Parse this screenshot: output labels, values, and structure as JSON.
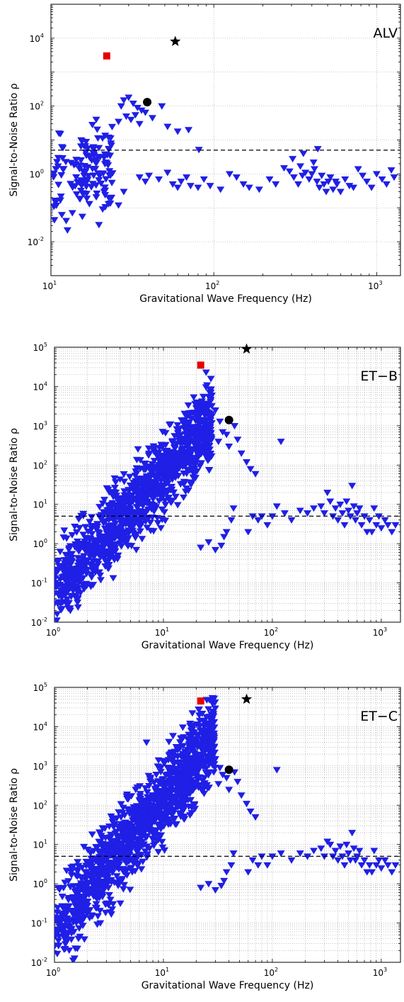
{
  "figure": {
    "panels": [
      "ALV",
      "ET-B",
      "ET-C"
    ]
  },
  "colors": {
    "triangle": "#1f1fe6",
    "square": "#e60000",
    "circle": "#000000",
    "star": "#000000",
    "threshold": "#000000",
    "grid": "#9a9a9a"
  },
  "chart_data": [
    {
      "type": "scatter",
      "label": "ALV",
      "xlabel": "Gravitational Wave Frequency (Hz)",
      "ylabel": "Signal-to-Noise Ratio ρ",
      "xscale": "log",
      "yscale": "log",
      "xlim": [
        10,
        1400
      ],
      "ylim": [
        0.001,
        100000
      ],
      "xticks": [
        {
          "base": "10",
          "exp": "1",
          "v": 10
        },
        {
          "base": "10",
          "exp": "2",
          "v": 100
        },
        {
          "base": "10",
          "exp": "3",
          "v": 1000
        }
      ],
      "yticks": [
        {
          "base": "10",
          "exp": "-2",
          "v": 0.01
        },
        {
          "base": "10",
          "exp": "0",
          "v": 1
        },
        {
          "base": "10",
          "exp": "2",
          "v": 100
        },
        {
          "base": "10",
          "exp": "4",
          "v": 10000
        }
      ],
      "grid": "major",
      "threshold": 5,
      "square": {
        "x": 22,
        "y": 3000
      },
      "star": {
        "x": 58,
        "y": 8000
      },
      "circle": {
        "x": 39,
        "y": 130
      },
      "cluster": {
        "n": 140,
        "fmin": 10.2,
        "fmax": 24,
        "base": 0.4,
        "slope": 2.2,
        "spread": 1.0
      },
      "triangles": [
        [
          30,
          180
        ],
        [
          28,
          150
        ],
        [
          32,
          120
        ],
        [
          27,
          100
        ],
        [
          34,
          90
        ],
        [
          36,
          75
        ],
        [
          38,
          65
        ],
        [
          33,
          55
        ],
        [
          29,
          50
        ],
        [
          31,
          40
        ],
        [
          26,
          35
        ],
        [
          35,
          30
        ],
        [
          42,
          45
        ],
        [
          48,
          100
        ],
        [
          52,
          25
        ],
        [
          60,
          18
        ],
        [
          70,
          20
        ],
        [
          81,
          5.2
        ],
        [
          26,
          0.12
        ],
        [
          28,
          0.3
        ],
        [
          35,
          0.8
        ],
        [
          38,
          0.6
        ],
        [
          40,
          0.9
        ],
        [
          46,
          0.7
        ],
        [
          52,
          1.1
        ],
        [
          56,
          0.5
        ],
        [
          60,
          0.4
        ],
        [
          63,
          0.6
        ],
        [
          68,
          0.8
        ],
        [
          72,
          0.45
        ],
        [
          80,
          0.4
        ],
        [
          87,
          0.7
        ],
        [
          95,
          0.45
        ],
        [
          110,
          0.35
        ],
        [
          125,
          1.0
        ],
        [
          138,
          0.8
        ],
        [
          152,
          0.5
        ],
        [
          165,
          0.4
        ],
        [
          190,
          0.35
        ],
        [
          220,
          0.7
        ],
        [
          240,
          0.5
        ],
        [
          270,
          1.5
        ],
        [
          292,
          1.2
        ],
        [
          310,
          0.8
        ],
        [
          330,
          0.5
        ],
        [
          350,
          0.9
        ],
        [
          365,
          1.1
        ],
        [
          385,
          0.7
        ],
        [
          400,
          1.0
        ],
        [
          415,
          1.4
        ],
        [
          430,
          0.6
        ],
        [
          445,
          0.4
        ],
        [
          460,
          0.9
        ],
        [
          475,
          0.5
        ],
        [
          490,
          0.3
        ],
        [
          505,
          0.6
        ],
        [
          520,
          0.8
        ],
        [
          540,
          0.35
        ],
        [
          570,
          0.5
        ],
        [
          600,
          0.3
        ],
        [
          640,
          0.7
        ],
        [
          680,
          0.45
        ],
        [
          720,
          0.4
        ],
        [
          770,
          1.4
        ],
        [
          820,
          0.9
        ],
        [
          870,
          0.6
        ],
        [
          930,
          0.4
        ],
        [
          1000,
          1.0
        ],
        [
          1080,
          0.7
        ],
        [
          1150,
          0.5
        ],
        [
          1230,
          1.3
        ],
        [
          1280,
          0.8
        ],
        [
          305,
          2.8
        ],
        [
          355,
          4.0
        ],
        [
          410,
          2.2
        ],
        [
          435,
          5.5
        ],
        [
          340,
          1.7
        ],
        [
          560,
          0.6
        ]
      ]
    },
    {
      "type": "scatter",
      "label": "ET−B",
      "xlabel": "Gravitational Wave Frequency (Hz)",
      "ylabel": "Signal-to-Noise Ratio ρ",
      "xscale": "log",
      "yscale": "log",
      "xlim": [
        1,
        1500
      ],
      "ylim": [
        0.01,
        100000
      ],
      "xticks": [
        {
          "base": "10",
          "exp": "0",
          "v": 1
        },
        {
          "base": "10",
          "exp": "1",
          "v": 10
        },
        {
          "base": "10",
          "exp": "2",
          "v": 100
        },
        {
          "base": "10",
          "exp": "3",
          "v": 1000
        }
      ],
      "yticks": [
        {
          "base": "10",
          "exp": "-2",
          "v": 0.01
        },
        {
          "base": "10",
          "exp": "-1",
          "v": 0.1
        },
        {
          "base": "10",
          "exp": "0",
          "v": 1
        },
        {
          "base": "10",
          "exp": "1",
          "v": 10
        },
        {
          "base": "10",
          "exp": "2",
          "v": 100
        },
        {
          "base": "10",
          "exp": "3",
          "v": 1000
        },
        {
          "base": "10",
          "exp": "4",
          "v": 10000
        },
        {
          "base": "10",
          "exp": "5",
          "v": 100000
        }
      ],
      "grid": "full",
      "threshold": 5,
      "square": {
        "x": 22,
        "y": 35000
      },
      "star": {
        "x": 58,
        "y": 90000
      },
      "circle": {
        "x": 40,
        "y": 1400
      },
      "cluster": {
        "n": 1250,
        "fmin": 1.0,
        "fmax": 28,
        "base": 0.06,
        "slope": 3.0,
        "spread": 0.7
      },
      "triangles": [
        [
          30,
          2500
        ],
        [
          28,
          1800
        ],
        [
          33,
          1300
        ],
        [
          26,
          900
        ],
        [
          35,
          700
        ],
        [
          38,
          600
        ],
        [
          32,
          400
        ],
        [
          24,
          350
        ],
        [
          40,
          300
        ],
        [
          45,
          1000
        ],
        [
          48,
          450
        ],
        [
          52,
          200
        ],
        [
          58,
          120
        ],
        [
          63,
          80
        ],
        [
          70,
          60
        ],
        [
          120,
          400
        ],
        [
          100,
          5
        ],
        [
          150,
          4
        ],
        [
          180,
          7
        ],
        [
          210,
          6
        ],
        [
          240,
          8
        ],
        [
          280,
          9
        ],
        [
          300,
          6
        ],
        [
          320,
          20
        ],
        [
          340,
          12
        ],
        [
          360,
          5
        ],
        [
          380,
          8
        ],
        [
          400,
          4
        ],
        [
          420,
          10
        ],
        [
          440,
          6
        ],
        [
          460,
          3
        ],
        [
          480,
          12
        ],
        [
          500,
          7
        ],
        [
          520,
          5
        ],
        [
          540,
          30
        ],
        [
          560,
          9
        ],
        [
          580,
          4
        ],
        [
          600,
          6
        ],
        [
          630,
          8
        ],
        [
          660,
          3
        ],
        [
          700,
          5
        ],
        [
          740,
          2
        ],
        [
          780,
          4
        ],
        [
          820,
          2
        ],
        [
          860,
          8
        ],
        [
          900,
          3
        ],
        [
          950,
          5
        ],
        [
          1000,
          2.5
        ],
        [
          1080,
          4
        ],
        [
          1150,
          3
        ],
        [
          1250,
          2
        ],
        [
          1350,
          3
        ],
        [
          80,
          5
        ],
        [
          90,
          3
        ],
        [
          110,
          9
        ],
        [
          130,
          6
        ],
        [
          44,
          8
        ],
        [
          42,
          4
        ],
        [
          38,
          2
        ],
        [
          36,
          1.5
        ],
        [
          34,
          0.9
        ],
        [
          30,
          0.7
        ],
        [
          26,
          1.1
        ],
        [
          22,
          0.8
        ],
        [
          60,
          2
        ],
        [
          66,
          5
        ],
        [
          74,
          4
        ]
      ]
    },
    {
      "type": "scatter",
      "label": "ET−C",
      "xlabel": "Gravitational Wave Frequency (Hz)",
      "ylabel": "Signal-to-Noise Ratio ρ",
      "xscale": "log",
      "yscale": "log",
      "xlim": [
        1,
        1500
      ],
      "ylim": [
        0.01,
        100000
      ],
      "xticks": [
        {
          "base": "10",
          "exp": "0",
          "v": 1
        },
        {
          "base": "10",
          "exp": "1",
          "v": 10
        },
        {
          "base": "10",
          "exp": "2",
          "v": 100
        },
        {
          "base": "10",
          "exp": "3",
          "v": 1000
        }
      ],
      "yticks": [
        {
          "base": "10",
          "exp": "-2",
          "v": 0.01
        },
        {
          "base": "10",
          "exp": "-1",
          "v": 0.1
        },
        {
          "base": "10",
          "exp": "0",
          "v": 1
        },
        {
          "base": "10",
          "exp": "1",
          "v": 10
        },
        {
          "base": "10",
          "exp": "2",
          "v": 100
        },
        {
          "base": "10",
          "exp": "3",
          "v": 1000
        },
        {
          "base": "10",
          "exp": "4",
          "v": 10000
        },
        {
          "base": "10",
          "exp": "5",
          "v": 100000
        }
      ],
      "grid": "full",
      "threshold": 5,
      "square": {
        "x": 22,
        "y": 45000
      },
      "star": {
        "x": 58,
        "y": 50000
      },
      "circle": {
        "x": 40,
        "y": 800
      },
      "cluster": {
        "n": 1350,
        "fmin": 1.0,
        "fmax": 30,
        "base": 0.06,
        "slope": 3.4,
        "spread": 0.75
      },
      "triangles": [
        [
          7,
          4000
        ],
        [
          30,
          1500
        ],
        [
          28,
          1100
        ],
        [
          33,
          900
        ],
        [
          26,
          700
        ],
        [
          35,
          600
        ],
        [
          38,
          500
        ],
        [
          32,
          350
        ],
        [
          24,
          300
        ],
        [
          40,
          250
        ],
        [
          45,
          700
        ],
        [
          48,
          400
        ],
        [
          52,
          180
        ],
        [
          58,
          110
        ],
        [
          63,
          70
        ],
        [
          70,
          50
        ],
        [
          110,
          800
        ],
        [
          100,
          5
        ],
        [
          150,
          4
        ],
        [
          180,
          6
        ],
        [
          210,
          5
        ],
        [
          240,
          7
        ],
        [
          280,
          8
        ],
        [
          300,
          5
        ],
        [
          320,
          12
        ],
        [
          340,
          10
        ],
        [
          360,
          5
        ],
        [
          380,
          7
        ],
        [
          400,
          4
        ],
        [
          420,
          9
        ],
        [
          440,
          5
        ],
        [
          460,
          3
        ],
        [
          480,
          10
        ],
        [
          500,
          6
        ],
        [
          520,
          4
        ],
        [
          540,
          20
        ],
        [
          560,
          8
        ],
        [
          580,
          4
        ],
        [
          600,
          5
        ],
        [
          630,
          7
        ],
        [
          660,
          3
        ],
        [
          700,
          4
        ],
        [
          740,
          2
        ],
        [
          780,
          3
        ],
        [
          820,
          2
        ],
        [
          860,
          7
        ],
        [
          900,
          3
        ],
        [
          950,
          4
        ],
        [
          1000,
          2.5
        ],
        [
          1080,
          4
        ],
        [
          1150,
          3
        ],
        [
          1250,
          2
        ],
        [
          1350,
          3
        ],
        [
          80,
          5
        ],
        [
          90,
          3
        ],
        [
          120,
          6
        ],
        [
          44,
          6
        ],
        [
          42,
          3
        ],
        [
          38,
          2
        ],
        [
          36,
          1.2
        ],
        [
          34,
          0.9
        ],
        [
          30,
          0.7
        ],
        [
          26,
          1.0
        ],
        [
          22,
          0.8
        ],
        [
          60,
          2
        ],
        [
          66,
          4
        ],
        [
          74,
          3
        ]
      ]
    }
  ]
}
